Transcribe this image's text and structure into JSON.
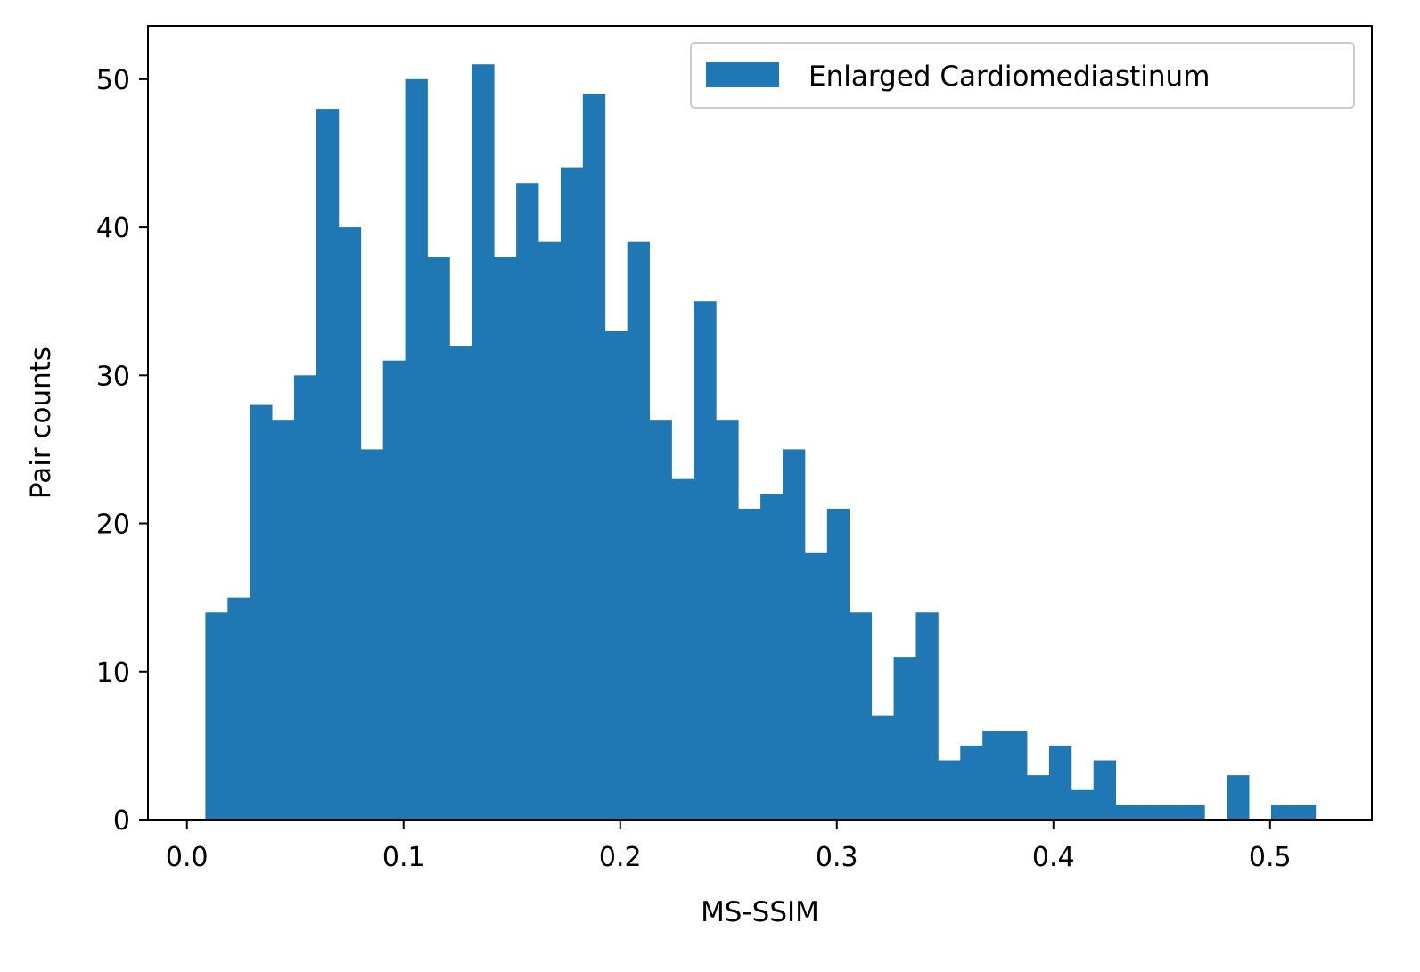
{
  "chart_data": {
    "type": "bar",
    "title": "",
    "xlabel": "MS-SSIM",
    "ylabel": "Pair counts",
    "legend": {
      "entries": [
        "Enlarged Cardiomediastinum"
      ],
      "placement": "top-right"
    },
    "series": [
      {
        "name": "Enlarged Cardiomediastinum",
        "color": "#1f77b4",
        "bin_width": 0.01025,
        "bin_starts": [
          0.0085,
          0.01875,
          0.029,
          0.03925,
          0.0495,
          0.05975,
          0.07,
          0.08025,
          0.0905,
          0.10075,
          0.111,
          0.12125,
          0.1315,
          0.14175,
          0.152,
          0.16225,
          0.1725,
          0.18275,
          0.193,
          0.20325,
          0.2135,
          0.22375,
          0.234,
          0.24425,
          0.2545,
          0.26475,
          0.275,
          0.28525,
          0.2955,
          0.30575,
          0.316,
          0.32625,
          0.3365,
          0.34675,
          0.357,
          0.36725,
          0.3775,
          0.38775,
          0.398,
          0.40825,
          0.4185,
          0.42875,
          0.439,
          0.44925,
          0.4595,
          0.46975,
          0.48,
          0.49025,
          0.5005,
          0.51075
        ],
        "values": [
          14,
          15,
          28,
          27,
          30,
          48,
          40,
          25,
          31,
          50,
          38,
          32,
          51,
          38,
          43,
          39,
          44,
          49,
          33,
          39,
          27,
          23,
          35,
          27,
          21,
          22,
          25,
          18,
          21,
          14,
          7,
          11,
          14,
          4,
          5,
          6,
          6,
          3,
          5,
          2,
          4,
          1,
          1,
          1,
          1,
          0,
          3,
          0,
          1,
          1
        ]
      }
    ],
    "xlim": [
      -0.018,
      0.547
    ],
    "ylim": [
      0,
      53.6
    ],
    "x_ticks": [
      {
        "value": 0.0,
        "label": "0.0"
      },
      {
        "value": 0.1,
        "label": "0.1"
      },
      {
        "value": 0.2,
        "label": "0.2"
      },
      {
        "value": 0.3,
        "label": "0.3"
      },
      {
        "value": 0.4,
        "label": "0.4"
      },
      {
        "value": 0.5,
        "label": "0.5"
      }
    ],
    "y_ticks": [
      {
        "value": 0,
        "label": "0"
      },
      {
        "value": 10,
        "label": "10"
      },
      {
        "value": 20,
        "label": "20"
      },
      {
        "value": 30,
        "label": "30"
      },
      {
        "value": 40,
        "label": "40"
      },
      {
        "value": 50,
        "label": "50"
      }
    ],
    "grid": false
  }
}
